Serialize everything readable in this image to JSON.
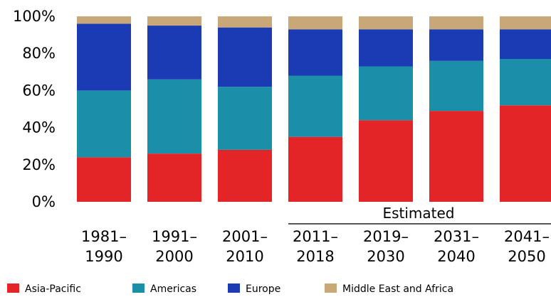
{
  "chart_data": {
    "type": "bar",
    "stacked": true,
    "title": "",
    "xlabel": "",
    "ylabel": "",
    "ylim": [
      0,
      100
    ],
    "y_ticks": [
      "0%",
      "20%",
      "40%",
      "60%",
      "80%",
      "100%"
    ],
    "categories": [
      [
        "1981–",
        "1990"
      ],
      [
        "1991–",
        "2000"
      ],
      [
        "2001–",
        "2010"
      ],
      [
        "2011–",
        "2018"
      ],
      [
        "2019–",
        "2030"
      ],
      [
        "2031–",
        "2040"
      ],
      [
        "2041–",
        "2050"
      ]
    ],
    "series": [
      {
        "name": "Asia-Pacific",
        "color": "#e42527",
        "values": [
          24,
          26,
          28,
          35,
          44,
          49,
          52
        ]
      },
      {
        "name": "Americas",
        "color": "#1c8fa8",
        "values": [
          36,
          40,
          34,
          33,
          29,
          27,
          25
        ]
      },
      {
        "name": "Europe",
        "color": "#1a3bb3",
        "values": [
          36,
          29,
          32,
          25,
          20,
          17,
          16
        ]
      },
      {
        "name": "Middle East and Africa",
        "color": "#c8a878",
        "values": [
          4,
          5,
          6,
          7,
          7,
          7,
          7
        ]
      }
    ],
    "annotation": "Estimated",
    "legend_position": "bottom",
    "grid": false
  }
}
